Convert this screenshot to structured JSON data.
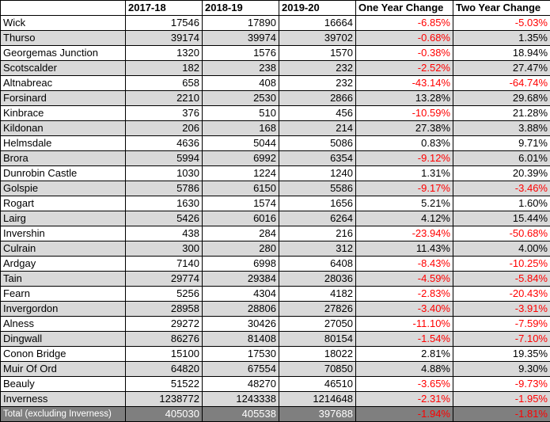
{
  "headers": [
    "",
    "2017-18",
    "2018-19",
    "2019-20",
    "One Year Change",
    "Two Year Change"
  ],
  "rows": [
    {
      "name": "Wick",
      "y1": "17546",
      "y2": "17890",
      "y3": "16664",
      "one": "-6.85%",
      "two": "-5.03%"
    },
    {
      "name": "Thurso",
      "y1": "39174",
      "y2": "39974",
      "y3": "39702",
      "one": "-0.68%",
      "two": "1.35%"
    },
    {
      "name": "Georgemas Junction",
      "y1": "1320",
      "y2": "1576",
      "y3": "1570",
      "one": "-0.38%",
      "two": "18.94%"
    },
    {
      "name": "Scotscalder",
      "y1": "182",
      "y2": "238",
      "y3": "232",
      "one": "-2.52%",
      "two": "27.47%"
    },
    {
      "name": "Altnabreac",
      "y1": "658",
      "y2": "408",
      "y3": "232",
      "one": "-43.14%",
      "two": "-64.74%"
    },
    {
      "name": "Forsinard",
      "y1": "2210",
      "y2": "2530",
      "y3": "2866",
      "one": "13.28%",
      "two": "29.68%"
    },
    {
      "name": "Kinbrace",
      "y1": "376",
      "y2": "510",
      "y3": "456",
      "one": "-10.59%",
      "two": "21.28%"
    },
    {
      "name": "Kildonan",
      "y1": "206",
      "y2": "168",
      "y3": "214",
      "one": "27.38%",
      "two": "3.88%"
    },
    {
      "name": "Helmsdale",
      "y1": "4636",
      "y2": "5044",
      "y3": "5086",
      "one": "0.83%",
      "two": "9.71%"
    },
    {
      "name": "Brora",
      "y1": "5994",
      "y2": "6992",
      "y3": "6354",
      "one": "-9.12%",
      "two": "6.01%"
    },
    {
      "name": "Dunrobin Castle",
      "y1": "1030",
      "y2": "1224",
      "y3": "1240",
      "one": "1.31%",
      "two": "20.39%"
    },
    {
      "name": "Golspie",
      "y1": "5786",
      "y2": "6150",
      "y3": "5586",
      "one": "-9.17%",
      "two": "-3.46%"
    },
    {
      "name": "Rogart",
      "y1": "1630",
      "y2": "1574",
      "y3": "1656",
      "one": "5.21%",
      "two": "1.60%"
    },
    {
      "name": "Lairg",
      "y1": "5426",
      "y2": "6016",
      "y3": "6264",
      "one": "4.12%",
      "two": "15.44%"
    },
    {
      "name": "Invershin",
      "y1": "438",
      "y2": "284",
      "y3": "216",
      "one": "-23.94%",
      "two": "-50.68%"
    },
    {
      "name": "Culrain",
      "y1": "300",
      "y2": "280",
      "y3": "312",
      "one": "11.43%",
      "two": "4.00%"
    },
    {
      "name": "Ardgay",
      "y1": "7140",
      "y2": "6998",
      "y3": "6408",
      "one": "-8.43%",
      "two": "-10.25%"
    },
    {
      "name": "Tain",
      "y1": "29774",
      "y2": "29384",
      "y3": "28036",
      "one": "-4.59%",
      "two": "-5.84%"
    },
    {
      "name": "Fearn",
      "y1": "5256",
      "y2": "4304",
      "y3": "4182",
      "one": "-2.83%",
      "two": "-20.43%"
    },
    {
      "name": "Invergordon",
      "y1": "28958",
      "y2": "28806",
      "y3": "27826",
      "one": "-3.40%",
      "two": "-3.91%"
    },
    {
      "name": "Alness",
      "y1": "29272",
      "y2": "30426",
      "y3": "27050",
      "one": "-11.10%",
      "two": "-7.59%"
    },
    {
      "name": "Dingwall",
      "y1": "86276",
      "y2": "81408",
      "y3": "80154",
      "one": "-1.54%",
      "two": "-7.10%"
    },
    {
      "name": "Conon Bridge",
      "y1": "15100",
      "y2": "17530",
      "y3": "18022",
      "one": "2.81%",
      "two": "19.35%"
    },
    {
      "name": "Muir Of Ord",
      "y1": "64820",
      "y2": "67554",
      "y3": "70850",
      "one": "4.88%",
      "two": "9.30%"
    },
    {
      "name": "Beauly",
      "y1": "51522",
      "y2": "48270",
      "y3": "46510",
      "one": "-3.65%",
      "two": "-9.73%"
    },
    {
      "name": "Inverness",
      "y1": "1238772",
      "y2": "1243338",
      "y3": "1214648",
      "one": "-2.31%",
      "two": "-1.95%"
    }
  ],
  "total": {
    "name": "Total (excluding Inverness)",
    "y1": "405030",
    "y2": "405538",
    "y3": "397688",
    "one": "-1.94%",
    "two": "-1.81%"
  },
  "colors": {
    "negative": "#ff0000",
    "shade": "#d9d9d9",
    "total_bg": "#7f7f7f"
  }
}
